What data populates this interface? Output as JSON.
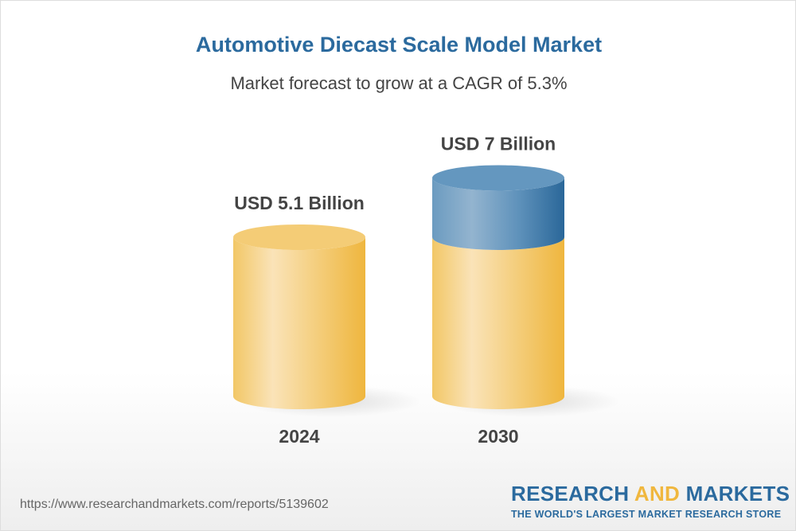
{
  "header": {
    "title": "Automotive Diecast Scale Model Market",
    "subtitle": "Market forecast to grow at a CAGR of 5.3%"
  },
  "chart_data": {
    "type": "bar",
    "title": "Automotive Diecast Scale Model Market",
    "subtitle": "Market forecast to grow at a CAGR of 5.3%",
    "categories": [
      "2024",
      "2030"
    ],
    "values": [
      5.1,
      7
    ],
    "data_labels": [
      "USD 5.1 Billion",
      "USD 7 Billion"
    ],
    "unit": "USD Billion",
    "style": "3d-cylinder",
    "colors": {
      "base": "#f0b73e",
      "growth": "#2b6a9e"
    }
  },
  "footer": {
    "url": "https://www.researchandmarkets.com/reports/5139602",
    "logo_part1": "RESEARCH ",
    "logo_part2": "AND",
    "logo_part3": " MARKETS",
    "tagline": "THE WORLD'S LARGEST MARKET RESEARCH STORE"
  }
}
